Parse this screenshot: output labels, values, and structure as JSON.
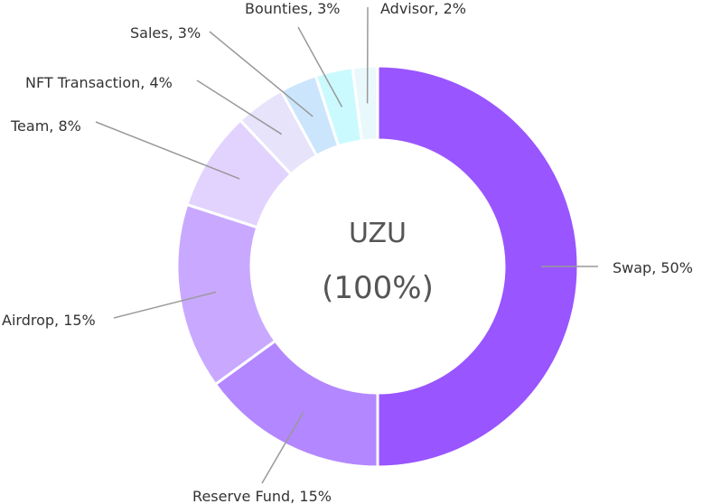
{
  "chart_data": {
    "type": "pie",
    "style": "donut",
    "center_title": "UZU",
    "center_subtitle": "(100%)",
    "slices": [
      {
        "name": "Swap",
        "value": 50,
        "label": "Swap, 50%",
        "color": "#9955ff"
      },
      {
        "name": "Reserve Fund",
        "value": 15,
        "label": "Reserve Fund, 15%",
        "color": "#b387ff"
      },
      {
        "name": "Airdrop",
        "value": 15,
        "label": "Airdrop, 15%",
        "color": "#c9a9ff"
      },
      {
        "name": "Team",
        "value": 8,
        "label": "Team, 8%",
        "color": "#e2d3fe"
      },
      {
        "name": "NFT Transaction",
        "value": 4,
        "label": "NFT Transaction, 4%",
        "color": "#e6e3fb"
      },
      {
        "name": "Sales",
        "value": 3,
        "label": "Sales, 3%",
        "color": "#cbe6fc"
      },
      {
        "name": "Bounties",
        "value": 3,
        "label": "Bounties, 3%",
        "color": "#cbfafe"
      },
      {
        "name": "Advisor",
        "value": 2,
        "label": "Advisor, 2%",
        "color": "#e9f8fb"
      }
    ]
  }
}
